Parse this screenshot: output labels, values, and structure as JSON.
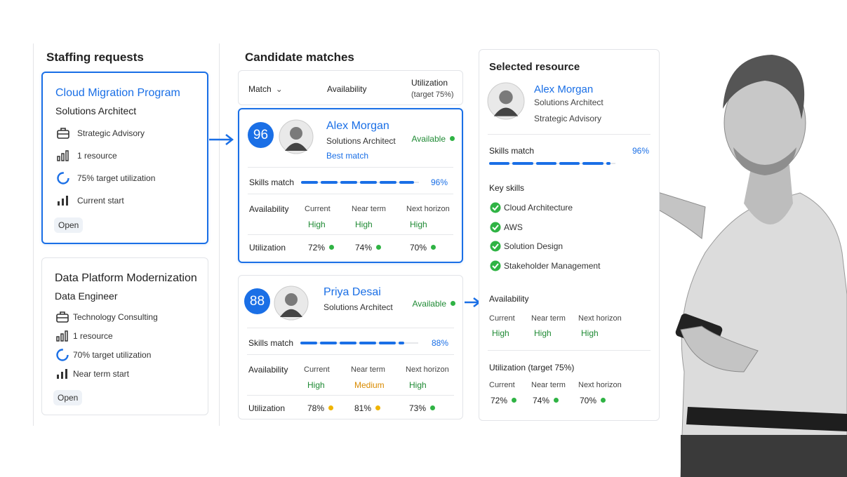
{
  "requests": {
    "title": "Staffing requests",
    "items": [
      {
        "title": "Cloud Migration Program",
        "role": "Solutions Architect",
        "details": [
          "Strategic Advisory",
          "1 resource",
          "75% target utilization",
          "Current start"
        ],
        "status": "Open"
      },
      {
        "title": "Data Platform Modernization",
        "role": "Data Engineer",
        "details": [
          "Technology Consulting",
          "1 resource",
          "70% target utilization",
          "Near term start"
        ],
        "status": "Open"
      }
    ]
  },
  "matches": {
    "title": "Candidate matches",
    "columns": [
      "Match",
      "Availability",
      "Utilization",
      "(target 75%)"
    ],
    "candidates": [
      {
        "score": "96",
        "name": "Alex Morgan",
        "role": "Solutions Architect",
        "tag": "Best match",
        "status": "Available",
        "skills_label": "Skills match",
        "skills": "96%",
        "availability_label": "Availability",
        "availability": [
          {
            "horizon": "Current",
            "level": "High",
            "color": "#1f8a34"
          },
          {
            "horizon": "Near term",
            "level": "High",
            "color": "#1f8a34"
          },
          {
            "horizon": "Next horizon",
            "level": "High",
            "color": "#1f8a34"
          }
        ],
        "utilization_label": "Utilization",
        "utilization": [
          {
            "value": "72%",
            "color": "#2fb344"
          },
          {
            "value": "74%",
            "color": "#2fb344"
          },
          {
            "value": "70%",
            "color": "#2fb344"
          }
        ]
      },
      {
        "score": "88",
        "name": "Priya Desai",
        "role": "Solutions Architect",
        "status": "Available",
        "skills_label": "Skills match",
        "skills": "88%",
        "availability_label": "Availability",
        "availability": [
          {
            "horizon": "Current",
            "level": "High",
            "color": "#1f8a34"
          },
          {
            "horizon": "Near term",
            "level": "Medium",
            "color": "#d98a00"
          },
          {
            "horizon": "Next horizon",
            "level": "High",
            "color": "#1f8a34"
          }
        ],
        "utilization_label": "Utilization",
        "utilization": [
          {
            "value": "78%",
            "color": "#f0b400"
          },
          {
            "value": "81%",
            "color": "#f0b400"
          },
          {
            "value": "73%",
            "color": "#2fb344"
          }
        ]
      }
    ]
  },
  "selected": {
    "title": "Selected resource",
    "name": "Alex Morgan",
    "role": "Solutions Architect",
    "practice": "Strategic Advisory",
    "skills_label": "Skills match",
    "skills": "96%",
    "key_skills_label": "Key skills",
    "key_skills": [
      "Cloud Architecture",
      "AWS",
      "Solution Design",
      "Stakeholder Management"
    ],
    "availability_label": "Availability",
    "availability": [
      {
        "horizon": "Current",
        "level": "High",
        "color": "#1f8a34"
      },
      {
        "horizon": "Near term",
        "level": "High",
        "color": "#1f8a34"
      },
      {
        "horizon": "Next horizon",
        "level": "High",
        "color": "#1f8a34"
      }
    ],
    "utilization_label": "Utilization (target 75%)",
    "utilization": [
      {
        "horizon": "Current",
        "value": "72%",
        "color": "#2fb344"
      },
      {
        "horizon": "Near term",
        "value": "74%",
        "color": "#2fb344"
      },
      {
        "horizon": "Next horizon",
        "value": "70%",
        "color": "#2fb344"
      }
    ]
  }
}
